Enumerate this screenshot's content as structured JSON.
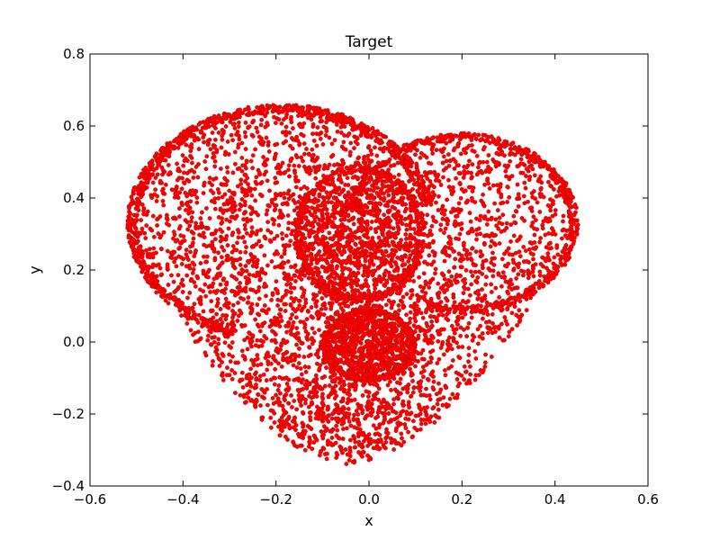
{
  "chart_data": {
    "type": "scatter",
    "title": "Target",
    "xlabel": "x",
    "ylabel": "y",
    "xlim": [
      -0.6,
      0.6
    ],
    "ylim": [
      -0.4,
      0.8
    ],
    "xticks": [
      -0.6,
      -0.4,
      -0.2,
      0.0,
      0.2,
      0.4,
      0.6
    ],
    "yticks": [
      -0.4,
      -0.2,
      0.0,
      0.2,
      0.4,
      0.6,
      0.8
    ],
    "xtick_labels": [
      "−0.6",
      "−0.4",
      "−0.2",
      "0.0",
      "0.2",
      "0.4",
      "0.6"
    ],
    "ytick_labels": [
      "−0.4",
      "−0.2",
      "0.0",
      "0.2",
      "0.4",
      "0.6",
      "0.8"
    ],
    "grid": false,
    "legend": "none",
    "marker_color": "#ff0000",
    "marker_edge": "#b00000",
    "point_count_approx": 6000,
    "shape": {
      "outer_heart": {
        "left_lobe_center": [
          -0.19,
          0.33
        ],
        "left_lobe_radius": 0.33,
        "right_lobe_center": [
          0.2,
          0.33
        ],
        "right_lobe_radius": 0.25,
        "bottom_point": [
          -0.05,
          -0.34
        ]
      },
      "inner_upper_blob": {
        "center": [
          -0.02,
          0.3
        ],
        "rx": 0.14,
        "ry": 0.19
      },
      "inner_lower_blob": {
        "center": [
          0.0,
          -0.01
        ],
        "rx": 0.1,
        "ry": 0.1
      }
    }
  }
}
